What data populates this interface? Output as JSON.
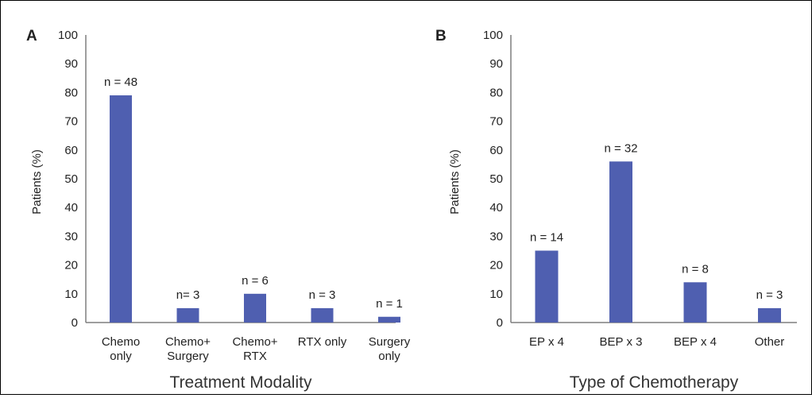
{
  "chart_data": [
    {
      "type": "bar",
      "panel": "A",
      "title": "",
      "xlabel": "Treatment Modality",
      "ylabel": "Patients (%)",
      "ylim": [
        0,
        100
      ],
      "yticks": [
        0,
        10,
        20,
        30,
        40,
        50,
        60,
        70,
        80,
        90,
        100
      ],
      "grid": false,
      "bar_color": "#4f5fb0",
      "categories": [
        [
          "Chemo",
          "only"
        ],
        [
          "Chemo+",
          "Surgery"
        ],
        [
          "Chemo+",
          "RTX"
        ],
        [
          "RTX only"
        ],
        [
          "Surgery",
          "only"
        ]
      ],
      "values": [
        79,
        5,
        10,
        5,
        2
      ],
      "data_labels": [
        "n = 48",
        "n= 3",
        "n =  6",
        "n = 3",
        "n = 1"
      ]
    },
    {
      "type": "bar",
      "panel": "B",
      "title": "",
      "xlabel": "Type of Chemotherapy",
      "ylabel": "Patients (%)",
      "ylim": [
        0,
        100
      ],
      "yticks": [
        0,
        10,
        20,
        30,
        40,
        50,
        60,
        70,
        80,
        90,
        100
      ],
      "grid": false,
      "bar_color": "#4f5fb0",
      "categories": [
        [
          "EP x 4"
        ],
        [
          "BEP x 3"
        ],
        [
          "BEP x 4"
        ],
        [
          "Other"
        ]
      ],
      "values": [
        25,
        56,
        14,
        5
      ],
      "data_labels": [
        "n = 14",
        "n = 32",
        "n = 8",
        "n = 3"
      ]
    }
  ]
}
